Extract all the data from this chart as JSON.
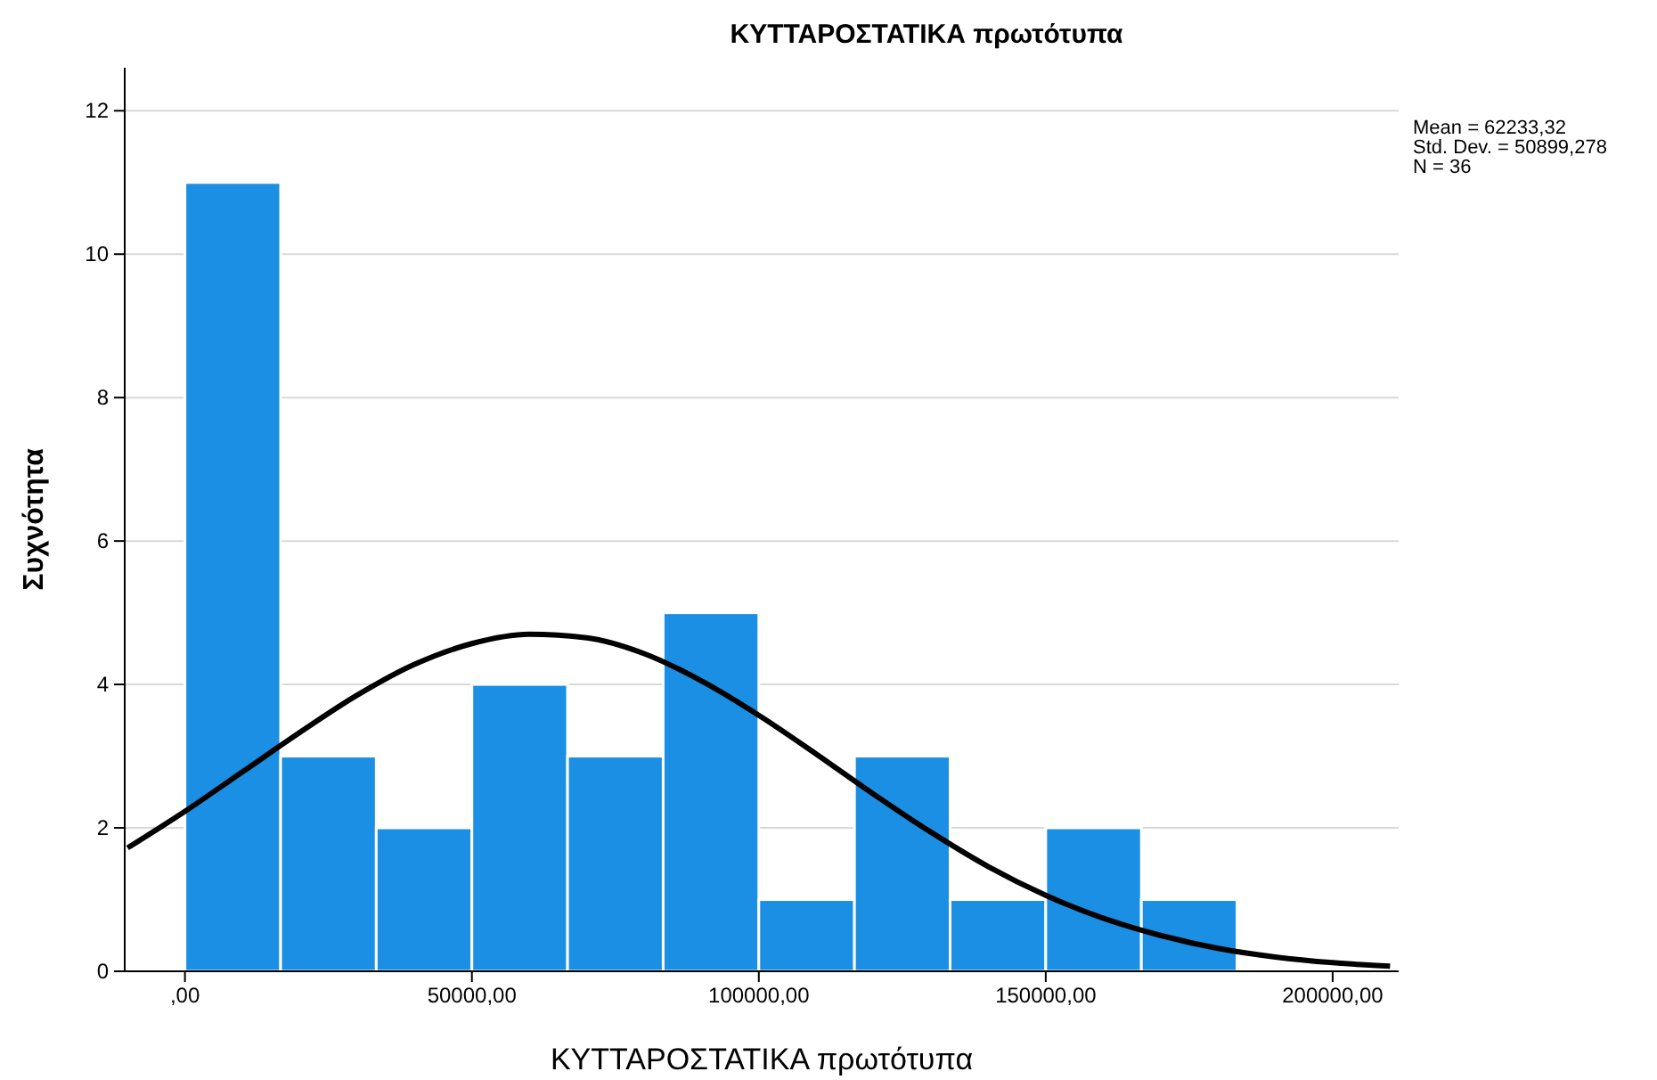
{
  "chart_data": {
    "type": "histogram",
    "title": "ΚΥΤΤΑΡΟΣΤΑΤΙΚΑ πρωτότυπα",
    "xlabel": "ΚΥΤΤΑΡΟΣΤΑΤΙΚΑ πρωτότυπα",
    "ylabel": "Συχνότητα",
    "bins": [
      0,
      16667,
      33333,
      50000,
      66667,
      83333,
      100000,
      116667,
      133333,
      150000,
      166667,
      183333
    ],
    "values": [
      11,
      3,
      2,
      4,
      3,
      5,
      1,
      3,
      1,
      2,
      1
    ],
    "color": "#1a8fe3",
    "series": [
      {
        "type": "line",
        "color": "#000000",
        "x": [
          -10000,
          0,
          10000,
          20000,
          30000,
          40000,
          50000,
          60000,
          70000,
          80000,
          90000,
          100000,
          110000,
          120000,
          130000,
          140000,
          150000,
          160000,
          170000,
          180000,
          190000,
          200000,
          210000
        ],
        "values": [
          1.72,
          2.23,
          2.78,
          3.33,
          3.85,
          4.28,
          4.57,
          4.7,
          4.65,
          4.43,
          4.05,
          3.57,
          3.03,
          2.47,
          1.94,
          1.46,
          1.06,
          0.74,
          0.5,
          0.32,
          0.2,
          0.12,
          0.07
        ]
      }
    ],
    "xlim": [
      -10500,
      211500
    ],
    "ylim": [
      0,
      12.6
    ],
    "xticks": [
      {
        "value": 0,
        "label": ",00"
      },
      {
        "value": 50000,
        "label": "50000,00"
      },
      {
        "value": 100000,
        "label": "100000,00"
      },
      {
        "value": 150000,
        "label": "150000,00"
      },
      {
        "value": 200000,
        "label": "200000,00"
      }
    ],
    "yticks": [
      0,
      2,
      4,
      6,
      8,
      10,
      12
    ],
    "grid": "y",
    "annotations": [
      "Mean = 62233,32",
      "Std. Dev. = 50899,278",
      "N = 36"
    ]
  }
}
